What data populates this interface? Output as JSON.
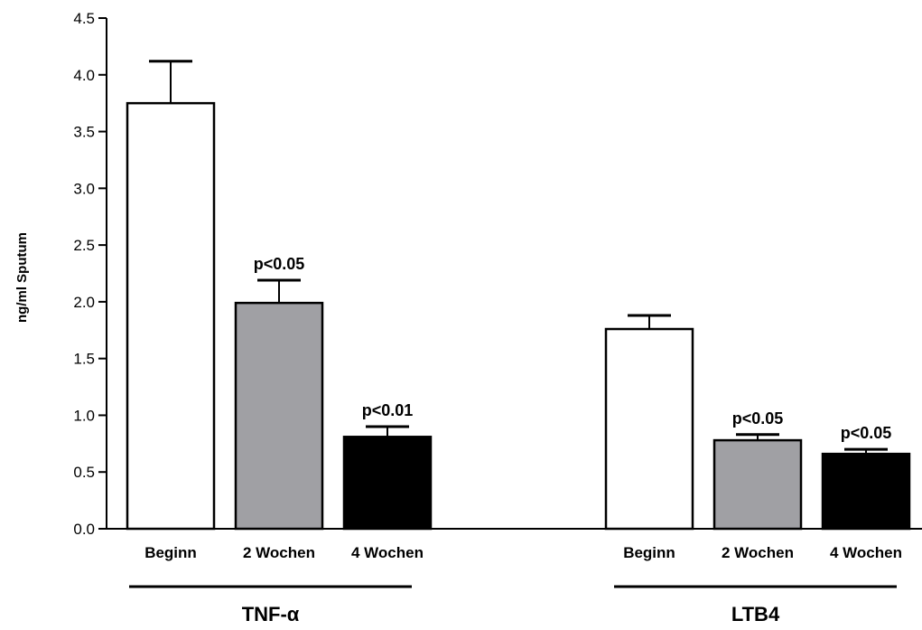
{
  "chart_data": {
    "type": "bar",
    "ylabel": "ng/ml Sputum",
    "ylim": [
      0,
      4.5
    ],
    "yticks": [
      "0.0",
      "0.5",
      "1.0",
      "1.5",
      "2.0",
      "2.5",
      "3.0",
      "3.5",
      "4.0",
      "4.5"
    ],
    "grid": false,
    "legend": "none",
    "groups": [
      {
        "name": "TNF-α",
        "bars": [
          {
            "category": "Beginn",
            "value": 3.75,
            "error": 0.37,
            "color": "#ffffff",
            "annotation": ""
          },
          {
            "category": "2 Wochen",
            "value": 1.99,
            "error": 0.2,
            "color": "#a0a0a4",
            "annotation": "p<0.05"
          },
          {
            "category": "4 Wochen",
            "value": 0.81,
            "error": 0.09,
            "color": "#000000",
            "annotation": "p<0.01"
          }
        ]
      },
      {
        "name": "LTB4",
        "bars": [
          {
            "category": "Beginn",
            "value": 1.76,
            "error": 0.12,
            "color": "#ffffff",
            "annotation": ""
          },
          {
            "category": "2 Wochen",
            "value": 0.78,
            "error": 0.05,
            "color": "#a0a0a4",
            "annotation": "p<0.05"
          },
          {
            "category": "4 Wochen",
            "value": 0.66,
            "error": 0.04,
            "color": "#000000",
            "annotation": "p<0.05"
          }
        ]
      }
    ]
  }
}
